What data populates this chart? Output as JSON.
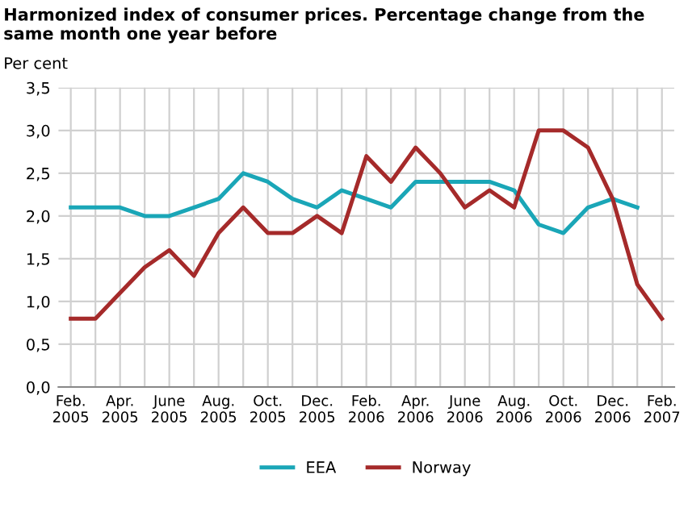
{
  "chart_data": {
    "type": "line",
    "title": "Harmonized index of consumer prices. Percentage change from the same month one year before",
    "ylabel": "Per cent",
    "categories": [
      "Feb.\n2005",
      null,
      "Apr.\n2005",
      null,
      "June\n2005",
      null,
      "Aug.\n2005",
      null,
      "Oct.\n2005",
      null,
      "Dec.\n2005",
      null,
      "Feb.\n2006",
      null,
      "Apr.\n2006",
      null,
      "June\n2006",
      null,
      "Aug.\n2006",
      null,
      "Oct.\n2006",
      null,
      "Dec.\n2006",
      null,
      "Feb.\n2007"
    ],
    "series": [
      {
        "name": "EEA",
        "color": "#1aa6b7",
        "values": [
          2.1,
          2.1,
          2.1,
          2.0,
          2.0,
          2.1,
          2.2,
          2.5,
          2.4,
          2.2,
          2.1,
          2.3,
          2.2,
          2.1,
          2.4,
          2.4,
          2.4,
          2.4,
          2.3,
          1.9,
          1.8,
          2.1,
          2.2,
          2.1,
          null
        ]
      },
      {
        "name": "Norway",
        "color": "#a52a2a",
        "values": [
          0.8,
          0.8,
          1.1,
          1.4,
          1.6,
          1.3,
          1.8,
          2.1,
          1.8,
          1.8,
          2.0,
          1.8,
          2.7,
          2.4,
          2.8,
          2.5,
          2.1,
          2.3,
          2.1,
          3.0,
          3.0,
          2.8,
          2.2,
          1.2,
          0.8
        ]
      }
    ],
    "ylim": [
      0,
      3.5
    ],
    "yticks": [
      {
        "value": 0,
        "label": "0,0"
      },
      {
        "value": 0.5,
        "label": "0,5"
      },
      {
        "value": 1,
        "label": "1,0"
      },
      {
        "value": 1.5,
        "label": "1,5"
      },
      {
        "value": 2,
        "label": "2,0"
      },
      {
        "value": 2.5,
        "label": "2,5"
      },
      {
        "value": 3,
        "label": "3,0"
      },
      {
        "value": 3.5,
        "label": "3,5"
      }
    ],
    "grid": true,
    "legend": "bottom"
  }
}
